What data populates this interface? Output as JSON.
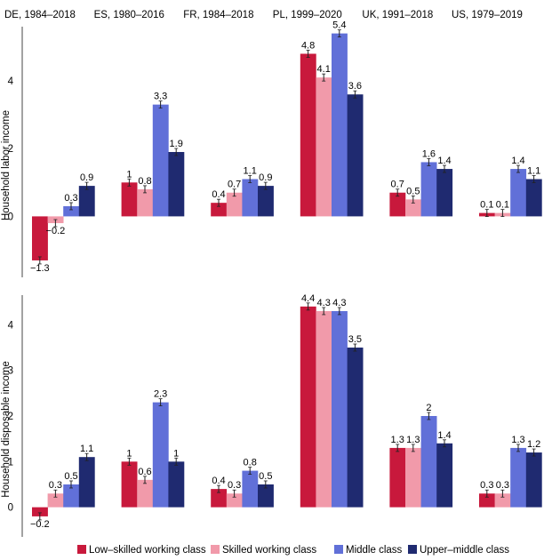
{
  "chart_data": {
    "type": "bar",
    "panels": [
      {
        "label": "DE, 1984–2018"
      },
      {
        "label": "ES, 1980–2016"
      },
      {
        "label": "FR, 1984–2018"
      },
      {
        "label": "PL, 1999–2020"
      },
      {
        "label": "UK, 1991–2018"
      },
      {
        "label": "US, 1979–2019"
      }
    ],
    "series_names": [
      "Low–skilled working class",
      "Skilled working class",
      "Middle class",
      "Upper–middle class"
    ],
    "series_colors": [
      "#c8193c",
      "#f19aaa",
      "#6170d8",
      "#1f2a70"
    ],
    "rows": [
      {
        "ylabel": "Household labor income",
        "yticks": [
          0,
          2,
          4
        ],
        "ylim": [
          -1.8,
          5.6
        ],
        "values": [
          [
            -1.3,
            -0.2,
            0.3,
            0.9
          ],
          [
            1,
            0.8,
            3.3,
            1.9
          ],
          [
            0.4,
            0.7,
            1.1,
            0.9
          ],
          [
            4.8,
            4.1,
            5.4,
            3.6
          ],
          [
            0.7,
            0.5,
            1.6,
            1.4
          ],
          [
            0.1,
            0.1,
            1.4,
            1.1
          ]
        ],
        "labels": [
          [
            "−1.3",
            "−0.2",
            "0.3",
            "0.9"
          ],
          [
            "1",
            "0.8",
            "3.3",
            "1.9"
          ],
          [
            "0.4",
            "0.7",
            "1.1",
            "0.9"
          ],
          [
            "4.8",
            "4.1",
            "5.4",
            "3.6"
          ],
          [
            "0.7",
            "0.5",
            "1.6",
            "1.4"
          ],
          [
            "0.1",
            "0.1",
            "1.4",
            "1.1"
          ]
        ]
      },
      {
        "ylabel": "Household disposable income",
        "yticks": [
          0,
          1,
          2,
          3,
          4
        ],
        "ylim": [
          -0.65,
          4.65
        ],
        "values": [
          [
            -0.2,
            0.3,
            0.5,
            1.1
          ],
          [
            1,
            0.6,
            2.3,
            1
          ],
          [
            0.4,
            0.3,
            0.8,
            0.5
          ],
          [
            4.4,
            4.3,
            4.3,
            3.5
          ],
          [
            1.3,
            1.3,
            2,
            1.4
          ],
          [
            0.3,
            0.3,
            1.3,
            1.2
          ]
        ],
        "labels": [
          [
            "−0.2",
            "0.3",
            "0.5",
            "1.1"
          ],
          [
            "1",
            "0.6",
            "2.3",
            "1"
          ],
          [
            "0.4",
            "0.3",
            "0.8",
            "0.5"
          ],
          [
            "4.4",
            "4.3",
            "4.3",
            "3.5"
          ],
          [
            "1.3",
            "1.3",
            "2",
            "1.4"
          ],
          [
            "0.3",
            "0.3",
            "1.3",
            "1.2"
          ]
        ]
      }
    ],
    "legend_position": "bottom",
    "grid": false
  }
}
